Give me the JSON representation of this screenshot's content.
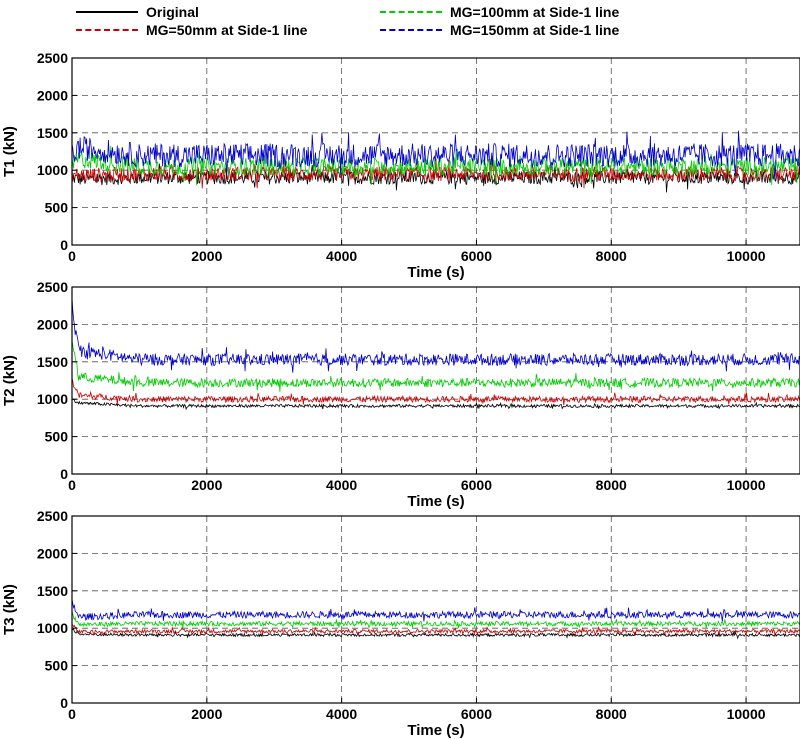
{
  "legend": {
    "items": [
      {
        "label": "Original",
        "color": "#000000",
        "style": "solid"
      },
      {
        "label": "MG=50mm at Side-1 line",
        "color": "#cc0000",
        "style": "dashdot"
      },
      {
        "label": "MG=100mm at Side-1 line",
        "color": "#00cc00",
        "style": "dashdot"
      },
      {
        "label": "MG=150mm at Side-1 line",
        "color": "#0000cc",
        "style": "dashdot"
      }
    ]
  },
  "chart_data": [
    {
      "type": "line",
      "ylabel": "T1 (kN)",
      "xlabel": "Time (s)",
      "xlim": [
        0,
        10800
      ],
      "ylim": [
        0,
        2500
      ],
      "xticks": [
        0,
        2000,
        4000,
        6000,
        8000,
        10000
      ],
      "yticks": [
        0,
        500,
        1000,
        1500,
        2000,
        2500
      ],
      "grid": true,
      "series": [
        {
          "name": "Original",
          "color": "#000000",
          "mean": 900,
          "amplitude": 90,
          "x": [
            0,
            100,
            1000,
            2000,
            4000,
            5750,
            6000,
            8000,
            10000,
            10300,
            10800
          ],
          "y": [
            900,
            880,
            900,
            900,
            900,
            900,
            900,
            900,
            900,
            900,
            900
          ]
        },
        {
          "name": "MG=50mm at Side-1 line",
          "color": "#cc0000",
          "mean": 950,
          "amplitude": 100,
          "x": [
            0,
            100,
            1000,
            2000,
            4000,
            5750,
            6000,
            8000,
            10000,
            10300,
            10800
          ],
          "y": [
            950,
            930,
            950,
            950,
            950,
            950,
            950,
            950,
            950,
            950,
            950
          ]
        },
        {
          "name": "MG=100mm at Side-1 line",
          "color": "#00cc00",
          "mean": 1050,
          "amplitude": 120,
          "x": [
            0,
            100,
            1000,
            2000,
            4000,
            5750,
            6000,
            8000,
            10000,
            10300,
            10800
          ],
          "y": [
            1050,
            1150,
            1050,
            1050,
            1050,
            1050,
            1050,
            1050,
            1050,
            1050,
            1050
          ]
        },
        {
          "name": "MG=150mm at Side-1 line",
          "color": "#0000cc",
          "mean": 1200,
          "amplitude": 160,
          "x": [
            0,
            100,
            1000,
            2000,
            4000,
            5750,
            6000,
            8000,
            10000,
            10300,
            10800
          ],
          "y": [
            1200,
            1300,
            1200,
            1200,
            1200,
            1200,
            1200,
            1200,
            1200,
            1200,
            1200
          ]
        }
      ]
    },
    {
      "type": "line",
      "ylabel": "T2 (kN)",
      "xlabel": "Time (s)",
      "xlim": [
        0,
        10800
      ],
      "ylim": [
        0,
        2500
      ],
      "xticks": [
        0,
        2000,
        4000,
        6000,
        8000,
        10000
      ],
      "yticks": [
        0,
        500,
        1000,
        1500,
        2000,
        2500
      ],
      "grid": true,
      "series": [
        {
          "name": "Original",
          "color": "#000000",
          "mean": 910,
          "amplitude": 20,
          "x": [
            0,
            100,
            1000,
            2000,
            4000,
            5750,
            6000,
            8000,
            10000,
            10300,
            10800
          ],
          "y": [
            1000,
            950,
            910,
            910,
            910,
            910,
            910,
            910,
            910,
            910,
            910
          ]
        },
        {
          "name": "MG=50mm at Side-1 line",
          "color": "#cc0000",
          "mean": 1000,
          "amplitude": 40,
          "x": [
            0,
            100,
            1000,
            2000,
            4000,
            5750,
            6000,
            8000,
            10000,
            10300,
            10800
          ],
          "y": [
            1250,
            1050,
            1000,
            1000,
            1000,
            1000,
            1000,
            1000,
            1000,
            1000,
            1000
          ]
        },
        {
          "name": "MG=100mm at Side-1 line",
          "color": "#00cc00",
          "mean": 1220,
          "amplitude": 60,
          "x": [
            0,
            100,
            1000,
            2000,
            4000,
            5750,
            6000,
            8000,
            10000,
            10300,
            10800
          ],
          "y": [
            1800,
            1300,
            1220,
            1220,
            1220,
            1220,
            1220,
            1220,
            1220,
            1220,
            1220
          ]
        },
        {
          "name": "MG=150mm at Side-1 line",
          "color": "#0000cc",
          "mean": 1530,
          "amplitude": 80,
          "x": [
            0,
            100,
            1000,
            2000,
            4000,
            5750,
            6000,
            8000,
            10000,
            10300,
            10800
          ],
          "y": [
            2200,
            1650,
            1530,
            1530,
            1530,
            1530,
            1530,
            1530,
            1530,
            1530,
            1530
          ]
        }
      ]
    },
    {
      "type": "line",
      "ylabel": "T3 (kN)",
      "xlabel": "Time (s)",
      "xlim": [
        0,
        10800
      ],
      "ylim": [
        0,
        2500
      ],
      "xticks": [
        0,
        2000,
        4000,
        6000,
        8000,
        10000
      ],
      "yticks": [
        0,
        500,
        1000,
        1500,
        2000,
        2500
      ],
      "grid": true,
      "series": [
        {
          "name": "Original",
          "color": "#000000",
          "mean": 910,
          "amplitude": 20,
          "x": [
            0,
            100,
            1000,
            2000,
            4000,
            5750,
            6000,
            8000,
            10000,
            10300,
            10800
          ],
          "y": [
            1000,
            920,
            910,
            910,
            910,
            910,
            910,
            910,
            910,
            910,
            910
          ]
        },
        {
          "name": "MG=50mm at Side-1 line",
          "color": "#cc0000",
          "mean": 960,
          "amplitude": 25,
          "x": [
            0,
            100,
            1000,
            2000,
            4000,
            5750,
            6000,
            8000,
            10000,
            10300,
            10800
          ],
          "y": [
            1050,
            950,
            960,
            960,
            960,
            960,
            960,
            960,
            960,
            960,
            960
          ]
        },
        {
          "name": "MG=100mm at Side-1 line",
          "color": "#00cc00",
          "mean": 1060,
          "amplitude": 30,
          "x": [
            0,
            100,
            1000,
            2000,
            4000,
            5750,
            6000,
            8000,
            10000,
            10300,
            10800
          ],
          "y": [
            1200,
            1050,
            1060,
            1060,
            1060,
            1060,
            1060,
            1060,
            1060,
            1060,
            1060
          ]
        },
        {
          "name": "MG=150mm at Side-1 line",
          "color": "#0000cc",
          "mean": 1180,
          "amplitude": 45,
          "x": [
            0,
            100,
            1000,
            2000,
            4000,
            5750,
            6000,
            8000,
            10000,
            10300,
            10800
          ],
          "y": [
            1350,
            1150,
            1180,
            1180,
            1180,
            1180,
            1180,
            1180,
            1180,
            1180,
            1180
          ]
        }
      ]
    }
  ]
}
